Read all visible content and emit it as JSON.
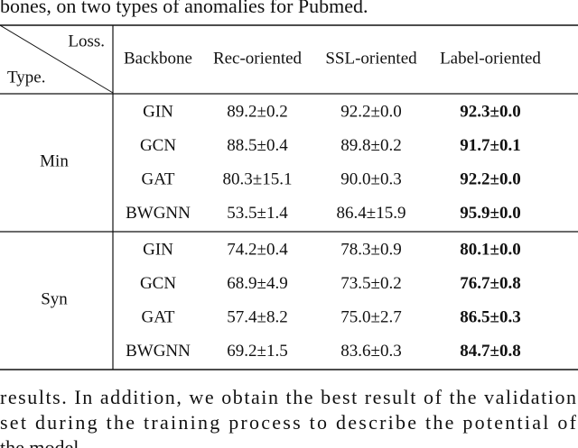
{
  "caption_tail": "bones, on two types of anomalies for Pubmed.",
  "table": {
    "corner": {
      "column_label": "Loss.",
      "row_label": "Type."
    },
    "columns": [
      "Backbone",
      "Rec-oriented",
      "SSL-oriented",
      "Label-oriented"
    ],
    "groups": [
      {
        "type": "Min",
        "rows": [
          [
            "GIN",
            "89.2±0.2",
            "92.2±0.0",
            "92.3±0.0"
          ],
          [
            "GCN",
            "88.5±0.4",
            "89.8±0.2",
            "91.7±0.1"
          ],
          [
            "GAT",
            "80.3±15.1",
            "90.0±0.3",
            "92.2±0.0"
          ],
          [
            "BWGNN",
            "53.5±1.4",
            "86.4±15.9",
            "95.9±0.0"
          ]
        ]
      },
      {
        "type": "Syn",
        "rows": [
          [
            "GIN",
            "74.2±0.4",
            "78.3±0.9",
            "80.1±0.0"
          ],
          [
            "GCN",
            "68.9±4.9",
            "73.5±0.2",
            "76.7±0.8"
          ],
          [
            "GAT",
            "57.4±8.2",
            "75.0±2.7",
            "86.5±0.3"
          ],
          [
            "BWGNN",
            "69.2±1.5",
            "83.6±0.3",
            "84.7±0.8"
          ]
        ]
      }
    ]
  },
  "body_lines": [
    "results. In addition, we obtain the best result of the validation",
    "set during the training process to describe the potential of",
    "the model."
  ]
}
